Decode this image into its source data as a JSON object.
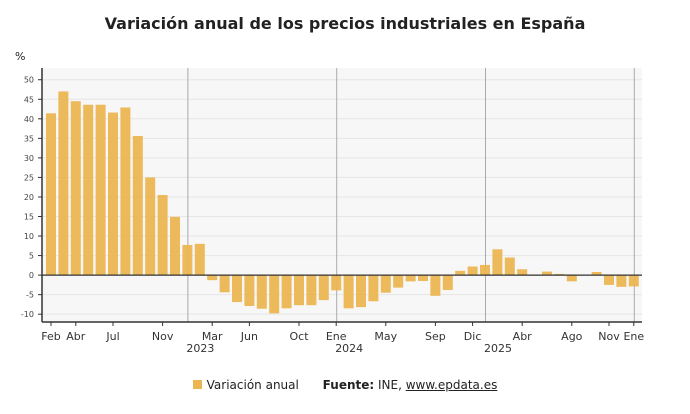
{
  "chart_data": {
    "type": "bar",
    "title": "Variación anual de los precios industriales en España",
    "ylabel": "%",
    "ylim": [
      -12,
      53
    ],
    "yticks": [
      -10,
      -5,
      0,
      5,
      10,
      15,
      20,
      25,
      30,
      35,
      40,
      45,
      50
    ],
    "grid": true,
    "legend_position": "bottom",
    "bar_color": "#ebb552",
    "x": [
      "2022-02",
      "2022-03",
      "2022-04",
      "2022-05",
      "2022-06",
      "2022-07",
      "2022-08",
      "2022-09",
      "2022-10",
      "2022-11",
      "2022-12",
      "2023-01",
      "2023-02",
      "2023-03",
      "2023-04",
      "2023-05",
      "2023-06",
      "2023-07",
      "2023-08",
      "2023-09",
      "2023-10",
      "2023-11",
      "2023-12",
      "2024-01",
      "2024-02",
      "2024-03",
      "2024-04",
      "2024-05",
      "2024-06",
      "2024-07",
      "2024-08",
      "2024-09",
      "2024-10",
      "2024-11",
      "2024-12",
      "2025-01",
      "2025-02",
      "2025-03",
      "2025-04",
      "2025-05",
      "2025-06",
      "2025-07",
      "2025-08",
      "2025-09",
      "2025-10",
      "2025-11",
      "2025-12",
      "2026-01"
    ],
    "series": [
      {
        "name": "Variación anual",
        "values": [
          41.4,
          47.0,
          44.5,
          43.6,
          43.6,
          41.6,
          42.9,
          35.6,
          25.0,
          20.5,
          14.9,
          7.7,
          8.0,
          -1.3,
          -4.4,
          -6.9,
          -7.9,
          -8.6,
          -9.8,
          -8.5,
          -7.7,
          -7.7,
          -6.4,
          -3.9,
          -8.5,
          -8.2,
          -6.7,
          -4.5,
          -3.2,
          -1.6,
          -1.5,
          -5.3,
          -3.8,
          1.1,
          2.2,
          2.6,
          6.6,
          4.5,
          1.5,
          0.0,
          0.9,
          0.3,
          -1.6,
          0.1,
          0.8,
          -2.5,
          -3.0,
          -2.9
        ]
      }
    ],
    "xtick_labels": [
      {
        "at": "2022-02",
        "label": "Feb"
      },
      {
        "at": "2022-04",
        "label": "Abr"
      },
      {
        "at": "2022-07",
        "label": "Jul"
      },
      {
        "at": "2022-11",
        "label": "Nov"
      },
      {
        "at": "2023-03",
        "label": "Mar"
      },
      {
        "at": "2023-06",
        "label": "Jun"
      },
      {
        "at": "2023-10",
        "label": "Oct"
      },
      {
        "at": "2024-01",
        "label": "Ene"
      },
      {
        "at": "2024-05",
        "label": "May"
      },
      {
        "at": "2024-09",
        "label": "Sep"
      },
      {
        "at": "2024-12",
        "label": "Dic"
      },
      {
        "at": "2025-04",
        "label": "Abr"
      },
      {
        "at": "2025-08",
        "label": "Ago"
      },
      {
        "at": "2025-11",
        "label": "Nov"
      },
      {
        "at": "2026-01",
        "label": "Ene"
      }
    ],
    "year_labels": [
      "2023",
      "2024",
      "2025"
    ]
  },
  "legend": {
    "label": "Variación anual"
  },
  "source": {
    "prefix": "Fuente:",
    "text": " INE, ",
    "link": "www.epdata.es"
  }
}
